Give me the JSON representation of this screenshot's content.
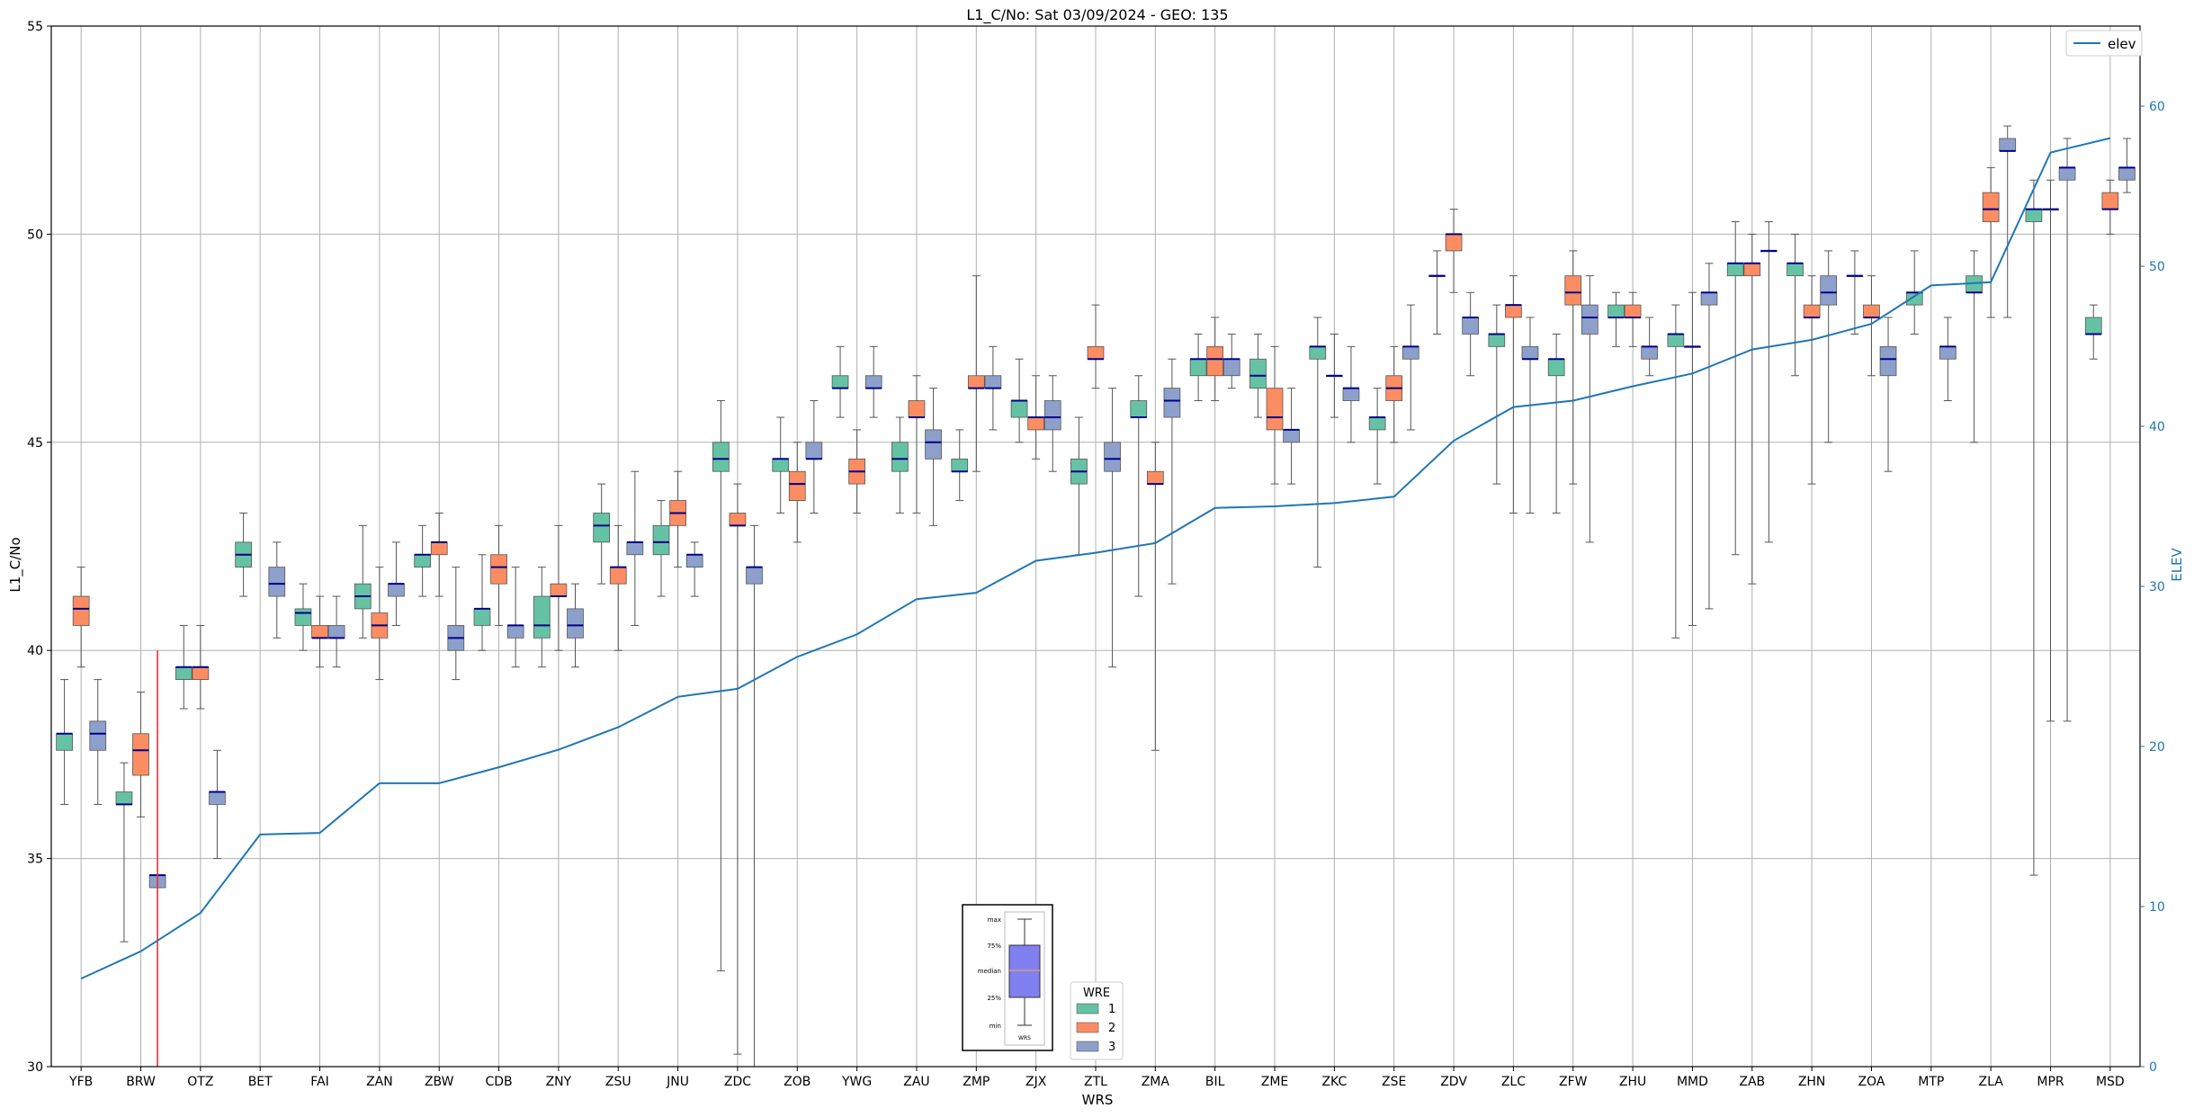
{
  "chart_data": {
    "type": "box",
    "title": "L1_C/No: Sat 03/09/2024 - GEO: 135",
    "xlabel": "WRS",
    "ylabel": "L1_C/No",
    "ylabel_right": "ELEV",
    "ylim": [
      30,
      55
    ],
    "ylim_right": [
      0,
      65
    ],
    "yticks": [
      30,
      35,
      40,
      45,
      50,
      55
    ],
    "yticks_right": [
      0,
      10,
      20,
      30,
      40,
      50,
      60
    ],
    "grid": true,
    "colors": {
      "1": "#66c2a5",
      "2": "#fc8d62",
      "3": "#8da0cb",
      "median": "#00008b",
      "elev": "#1f77b4",
      "marker": "#e8303a"
    },
    "legend_line": {
      "label": "elev",
      "placement": "top-right"
    },
    "legend_wre": {
      "title": "WRE",
      "entries": [
        "1",
        "2",
        "3"
      ],
      "placement": "bottom-center"
    },
    "inset_key": {
      "labels": [
        "max",
        "75%",
        "median",
        "25%",
        "min"
      ],
      "xlabel": "WRS"
    },
    "categories": [
      "YFB",
      "BRW",
      "OTZ",
      "BET",
      "FAI",
      "ZAN",
      "ZBW",
      "CDB",
      "ZNY",
      "ZSU",
      "JNU",
      "ZDC",
      "ZOB",
      "YWG",
      "ZAU",
      "ZMP",
      "ZJX",
      "ZTL",
      "ZMA",
      "BIL",
      "ZME",
      "ZKC",
      "ZSE",
      "ZDV",
      "ZLC",
      "ZFW",
      "ZHU",
      "MMD",
      "ZAB",
      "ZHN",
      "ZOA",
      "MTP",
      "ZLA",
      "MPR",
      "MSD"
    ],
    "elev": [
      5.5,
      7.2,
      9.6,
      14.5,
      14.6,
      17.7,
      17.7,
      18.7,
      19.8,
      21.2,
      23.1,
      23.6,
      25.6,
      27.0,
      29.2,
      29.6,
      31.6,
      32.1,
      32.7,
      34.9,
      35.0,
      35.2,
      35.6,
      39.1,
      41.2,
      41.6,
      42.5,
      43.3,
      44.8,
      45.4,
      46.4,
      48.8,
      49.0,
      57.1,
      58.0
    ],
    "marker_line": {
      "category": "BRW",
      "offset": 0.28,
      "y_from": 30,
      "y_to": 40
    },
    "boxes": [
      {
        "cat": "YFB",
        "wre": 1,
        "min": 36.3,
        "q1": 37.6,
        "med": 38.0,
        "q3": 38.0,
        "max": 39.3
      },
      {
        "cat": "YFB",
        "wre": 2,
        "min": 39.6,
        "q1": 40.6,
        "med": 41.0,
        "q3": 41.3,
        "max": 42.0
      },
      {
        "cat": "YFB",
        "wre": 3,
        "min": 36.3,
        "q1": 37.6,
        "med": 38.0,
        "q3": 38.3,
        "max": 39.3
      },
      {
        "cat": "BRW",
        "wre": 1,
        "min": 33.0,
        "q1": 36.3,
        "med": 36.3,
        "q3": 36.6,
        "max": 37.3
      },
      {
        "cat": "BRW",
        "wre": 2,
        "min": 36.0,
        "q1": 37.0,
        "med": 37.6,
        "q3": 38.0,
        "max": 39.0
      },
      {
        "cat": "BRW",
        "wre": 3,
        "min": 34.3,
        "q1": 34.3,
        "med": 34.6,
        "q3": 34.6,
        "max": 34.6
      },
      {
        "cat": "OTZ",
        "wre": 1,
        "min": 38.6,
        "q1": 39.3,
        "med": 39.6,
        "q3": 39.6,
        "max": 40.6
      },
      {
        "cat": "OTZ",
        "wre": 2,
        "min": 38.6,
        "q1": 39.3,
        "med": 39.6,
        "q3": 39.6,
        "max": 40.6
      },
      {
        "cat": "OTZ",
        "wre": 3,
        "min": 35.0,
        "q1": 36.3,
        "med": 36.6,
        "q3": 36.6,
        "max": 37.6
      },
      {
        "cat": "BET",
        "wre": 1,
        "min": 41.3,
        "q1": 42.0,
        "med": 42.3,
        "q3": 42.6,
        "max": 43.3
      },
      {
        "cat": "BET",
        "wre": 3,
        "min": 40.3,
        "q1": 41.3,
        "med": 41.6,
        "q3": 42.0,
        "max": 42.6
      },
      {
        "cat": "FAI",
        "wre": 1,
        "min": 40.0,
        "q1": 40.6,
        "med": 40.9,
        "q3": 41.0,
        "max": 41.6
      },
      {
        "cat": "FAI",
        "wre": 2,
        "min": 39.6,
        "q1": 40.3,
        "med": 40.3,
        "q3": 40.6,
        "max": 41.3
      },
      {
        "cat": "FAI",
        "wre": 3,
        "min": 39.6,
        "q1": 40.3,
        "med": 40.3,
        "q3": 40.6,
        "max": 41.3
      },
      {
        "cat": "ZAN",
        "wre": 1,
        "min": 40.3,
        "q1": 41.0,
        "med": 41.3,
        "q3": 41.6,
        "max": 43.0
      },
      {
        "cat": "ZAN",
        "wre": 2,
        "min": 39.3,
        "q1": 40.3,
        "med": 40.6,
        "q3": 40.9,
        "max": 42.0
      },
      {
        "cat": "ZAN",
        "wre": 3,
        "min": 40.6,
        "q1": 41.3,
        "med": 41.6,
        "q3": 41.6,
        "max": 42.6
      },
      {
        "cat": "ZBW",
        "wre": 1,
        "min": 41.3,
        "q1": 42.0,
        "med": 42.3,
        "q3": 42.3,
        "max": 43.0
      },
      {
        "cat": "ZBW",
        "wre": 2,
        "min": 41.3,
        "q1": 42.3,
        "med": 42.6,
        "q3": 42.6,
        "max": 43.3
      },
      {
        "cat": "ZBW",
        "wre": 3,
        "min": 39.3,
        "q1": 40.0,
        "med": 40.3,
        "q3": 40.6,
        "max": 42.0
      },
      {
        "cat": "CDB",
        "wre": 1,
        "min": 40.0,
        "q1": 40.6,
        "med": 41.0,
        "q3": 41.0,
        "max": 42.3
      },
      {
        "cat": "CDB",
        "wre": 2,
        "min": 40.6,
        "q1": 41.6,
        "med": 42.0,
        "q3": 42.3,
        "max": 43.0
      },
      {
        "cat": "CDB",
        "wre": 3,
        "min": 39.6,
        "q1": 40.3,
        "med": 40.6,
        "q3": 40.6,
        "max": 42.0
      },
      {
        "cat": "ZNY",
        "wre": 1,
        "min": 39.6,
        "q1": 40.3,
        "med": 40.6,
        "q3": 41.3,
        "max": 42.0
      },
      {
        "cat": "ZNY",
        "wre": 2,
        "min": 40.0,
        "q1": 41.3,
        "med": 41.3,
        "q3": 41.6,
        "max": 43.0
      },
      {
        "cat": "ZNY",
        "wre": 3,
        "min": 39.6,
        "q1": 40.3,
        "med": 40.6,
        "q3": 41.0,
        "max": 41.6
      },
      {
        "cat": "ZSU",
        "wre": 1,
        "min": 41.6,
        "q1": 42.6,
        "med": 43.0,
        "q3": 43.3,
        "max": 44.0
      },
      {
        "cat": "ZSU",
        "wre": 2,
        "min": 40.0,
        "q1": 41.6,
        "med": 42.0,
        "q3": 42.0,
        "max": 43.0
      },
      {
        "cat": "ZSU",
        "wre": 3,
        "min": 40.6,
        "q1": 42.3,
        "med": 42.6,
        "q3": 42.6,
        "max": 44.3
      },
      {
        "cat": "JNU",
        "wre": 1,
        "min": 41.3,
        "q1": 42.3,
        "med": 42.6,
        "q3": 43.0,
        "max": 43.6
      },
      {
        "cat": "JNU",
        "wre": 2,
        "min": 42.0,
        "q1": 43.0,
        "med": 43.3,
        "q3": 43.6,
        "max": 44.3
      },
      {
        "cat": "JNU",
        "wre": 3,
        "min": 41.3,
        "q1": 42.0,
        "med": 42.3,
        "q3": 42.3,
        "max": 42.6
      },
      {
        "cat": "ZDC",
        "wre": 1,
        "min": 32.3,
        "q1": 44.3,
        "med": 44.6,
        "q3": 45.0,
        "max": 46.0
      },
      {
        "cat": "ZDC",
        "wre": 2,
        "min": 30.3,
        "q1": 43.0,
        "med": 43.0,
        "q3": 43.3,
        "max": 44.0
      },
      {
        "cat": "ZDC",
        "wre": 3,
        "min": 30.0,
        "q1": 41.6,
        "med": 42.0,
        "q3": 42.0,
        "max": 43.0
      },
      {
        "cat": "ZOB",
        "wre": 1,
        "min": 43.3,
        "q1": 44.3,
        "med": 44.6,
        "q3": 44.6,
        "max": 45.6
      },
      {
        "cat": "ZOB",
        "wre": 2,
        "min": 42.6,
        "q1": 43.6,
        "med": 44.0,
        "q3": 44.3,
        "max": 45.0
      },
      {
        "cat": "ZOB",
        "wre": 3,
        "min": 43.3,
        "q1": 44.6,
        "med": 44.6,
        "q3": 45.0,
        "max": 46.0
      },
      {
        "cat": "YWG",
        "wre": 1,
        "min": 45.6,
        "q1": 46.3,
        "med": 46.3,
        "q3": 46.6,
        "max": 47.3
      },
      {
        "cat": "YWG",
        "wre": 2,
        "min": 43.3,
        "q1": 44.0,
        "med": 44.3,
        "q3": 44.6,
        "max": 45.3
      },
      {
        "cat": "YWG",
        "wre": 3,
        "min": 45.6,
        "q1": 46.3,
        "med": 46.3,
        "q3": 46.6,
        "max": 47.3
      },
      {
        "cat": "ZAU",
        "wre": 1,
        "min": 43.3,
        "q1": 44.3,
        "med": 44.6,
        "q3": 45.0,
        "max": 45.6
      },
      {
        "cat": "ZAU",
        "wre": 2,
        "min": 43.3,
        "q1": 45.6,
        "med": 45.6,
        "q3": 46.0,
        "max": 46.6
      },
      {
        "cat": "ZAU",
        "wre": 3,
        "min": 43.0,
        "q1": 44.6,
        "med": 45.0,
        "q3": 45.3,
        "max": 46.3
      },
      {
        "cat": "ZMP",
        "wre": 1,
        "min": 43.6,
        "q1": 44.3,
        "med": 44.3,
        "q3": 44.6,
        "max": 45.3
      },
      {
        "cat": "ZMP",
        "wre": 2,
        "min": 44.3,
        "q1": 46.3,
        "med": 46.3,
        "q3": 46.6,
        "max": 49.0
      },
      {
        "cat": "ZMP",
        "wre": 3,
        "min": 45.3,
        "q1": 46.3,
        "med": 46.3,
        "q3": 46.6,
        "max": 47.3
      },
      {
        "cat": "ZJX",
        "wre": 1,
        "min": 45.0,
        "q1": 45.6,
        "med": 46.0,
        "q3": 46.0,
        "max": 47.0
      },
      {
        "cat": "ZJX",
        "wre": 2,
        "min": 44.6,
        "q1": 45.3,
        "med": 45.6,
        "q3": 45.6,
        "max": 46.6
      },
      {
        "cat": "ZJX",
        "wre": 3,
        "min": 44.3,
        "q1": 45.3,
        "med": 45.6,
        "q3": 46.0,
        "max": 46.6
      },
      {
        "cat": "ZTL",
        "wre": 1,
        "min": 42.3,
        "q1": 44.0,
        "med": 44.3,
        "q3": 44.6,
        "max": 45.6
      },
      {
        "cat": "ZTL",
        "wre": 2,
        "min": 46.3,
        "q1": 47.0,
        "med": 47.0,
        "q3": 47.3,
        "max": 48.3
      },
      {
        "cat": "ZTL",
        "wre": 3,
        "min": 39.6,
        "q1": 44.3,
        "med": 44.6,
        "q3": 45.0,
        "max": 46.3
      },
      {
        "cat": "ZMA",
        "wre": 1,
        "min": 41.3,
        "q1": 45.6,
        "med": 45.6,
        "q3": 46.0,
        "max": 46.6
      },
      {
        "cat": "ZMA",
        "wre": 2,
        "min": 37.6,
        "q1": 44.0,
        "med": 44.0,
        "q3": 44.3,
        "max": 45.0
      },
      {
        "cat": "ZMA",
        "wre": 3,
        "min": 41.6,
        "q1": 45.6,
        "med": 46.0,
        "q3": 46.3,
        "max": 47.0
      },
      {
        "cat": "BIL",
        "wre": 1,
        "min": 46.0,
        "q1": 46.6,
        "med": 47.0,
        "q3": 47.0,
        "max": 47.6
      },
      {
        "cat": "BIL",
        "wre": 2,
        "min": 46.0,
        "q1": 46.6,
        "med": 47.0,
        "q3": 47.3,
        "max": 48.0
      },
      {
        "cat": "BIL",
        "wre": 3,
        "min": 46.3,
        "q1": 46.6,
        "med": 47.0,
        "q3": 47.0,
        "max": 47.6
      },
      {
        "cat": "ZME",
        "wre": 1,
        "min": 45.6,
        "q1": 46.3,
        "med": 46.6,
        "q3": 47.0,
        "max": 47.6
      },
      {
        "cat": "ZME",
        "wre": 2,
        "min": 44.0,
        "q1": 45.3,
        "med": 45.6,
        "q3": 46.3,
        "max": 47.3
      },
      {
        "cat": "ZME",
        "wre": 3,
        "min": 44.0,
        "q1": 45.0,
        "med": 45.3,
        "q3": 45.3,
        "max": 46.3
      },
      {
        "cat": "ZKC",
        "wre": 1,
        "min": 42.0,
        "q1": 47.0,
        "med": 47.3,
        "q3": 47.3,
        "max": 48.0
      },
      {
        "cat": "ZKC",
        "wre": 2,
        "min": 45.6,
        "q1": 46.6,
        "med": 46.6,
        "q3": 46.6,
        "max": 47.6
      },
      {
        "cat": "ZKC",
        "wre": 3,
        "min": 45.0,
        "q1": 46.0,
        "med": 46.3,
        "q3": 46.3,
        "max": 47.3
      },
      {
        "cat": "ZSE",
        "wre": 1,
        "min": 44.0,
        "q1": 45.3,
        "med": 45.6,
        "q3": 45.6,
        "max": 46.3
      },
      {
        "cat": "ZSE",
        "wre": 2,
        "min": 45.0,
        "q1": 46.0,
        "med": 46.3,
        "q3": 46.6,
        "max": 47.3
      },
      {
        "cat": "ZSE",
        "wre": 3,
        "min": 45.3,
        "q1": 47.0,
        "med": 47.3,
        "q3": 47.3,
        "max": 48.3
      },
      {
        "cat": "ZDV",
        "wre": 1,
        "min": 47.6,
        "q1": 49.0,
        "med": 49.0,
        "q3": 49.0,
        "max": 49.6
      },
      {
        "cat": "ZDV",
        "wre": 2,
        "min": 48.6,
        "q1": 49.6,
        "med": 50.0,
        "q3": 50.0,
        "max": 50.6
      },
      {
        "cat": "ZDV",
        "wre": 3,
        "min": 46.6,
        "q1": 47.6,
        "med": 48.0,
        "q3": 48.0,
        "max": 48.6
      },
      {
        "cat": "ZLC",
        "wre": 1,
        "min": 44.0,
        "q1": 47.3,
        "med": 47.6,
        "q3": 47.6,
        "max": 48.3
      },
      {
        "cat": "ZLC",
        "wre": 2,
        "min": 43.3,
        "q1": 48.0,
        "med": 48.3,
        "q3": 48.3,
        "max": 49.0
      },
      {
        "cat": "ZLC",
        "wre": 3,
        "min": 43.3,
        "q1": 47.0,
        "med": 47.0,
        "q3": 47.3,
        "max": 48.0
      },
      {
        "cat": "ZFW",
        "wre": 1,
        "min": 43.3,
        "q1": 46.6,
        "med": 47.0,
        "q3": 47.0,
        "max": 47.6
      },
      {
        "cat": "ZFW",
        "wre": 2,
        "min": 44.0,
        "q1": 48.3,
        "med": 48.6,
        "q3": 49.0,
        "max": 49.6
      },
      {
        "cat": "ZFW",
        "wre": 3,
        "min": 42.6,
        "q1": 47.6,
        "med": 48.0,
        "q3": 48.3,
        "max": 49.0
      },
      {
        "cat": "ZHU",
        "wre": 1,
        "min": 47.3,
        "q1": 48.0,
        "med": 48.0,
        "q3": 48.3,
        "max": 48.6
      },
      {
        "cat": "ZHU",
        "wre": 2,
        "min": 47.3,
        "q1": 48.0,
        "med": 48.0,
        "q3": 48.3,
        "max": 48.6
      },
      {
        "cat": "ZHU",
        "wre": 3,
        "min": 46.6,
        "q1": 47.0,
        "med": 47.3,
        "q3": 47.3,
        "max": 48.0
      },
      {
        "cat": "MMD",
        "wre": 1,
        "min": 40.3,
        "q1": 47.3,
        "med": 47.6,
        "q3": 47.6,
        "max": 48.3
      },
      {
        "cat": "MMD",
        "wre": 2,
        "min": 40.6,
        "q1": 47.3,
        "med": 47.3,
        "q3": 47.3,
        "max": 48.6
      },
      {
        "cat": "MMD",
        "wre": 3,
        "min": 41.0,
        "q1": 48.3,
        "med": 48.6,
        "q3": 48.6,
        "max": 49.3
      },
      {
        "cat": "ZAB",
        "wre": 1,
        "min": 42.3,
        "q1": 49.0,
        "med": 49.3,
        "q3": 49.3,
        "max": 50.3
      },
      {
        "cat": "ZAB",
        "wre": 2,
        "min": 41.6,
        "q1": 49.0,
        "med": 49.3,
        "q3": 49.3,
        "max": 50.0
      },
      {
        "cat": "ZAB",
        "wre": 3,
        "min": 42.6,
        "q1": 49.6,
        "med": 49.6,
        "q3": 49.6,
        "max": 50.3
      },
      {
        "cat": "ZHN",
        "wre": 1,
        "min": 46.6,
        "q1": 49.0,
        "med": 49.3,
        "q3": 49.3,
        "max": 50.0
      },
      {
        "cat": "ZHN",
        "wre": 2,
        "min": 44.0,
        "q1": 48.0,
        "med": 48.0,
        "q3": 48.3,
        "max": 49.0
      },
      {
        "cat": "ZHN",
        "wre": 3,
        "min": 45.0,
        "q1": 48.3,
        "med": 48.6,
        "q3": 49.0,
        "max": 49.6
      },
      {
        "cat": "ZOA",
        "wre": 1,
        "min": 47.6,
        "q1": 49.0,
        "med": 49.0,
        "q3": 49.0,
        "max": 49.6
      },
      {
        "cat": "ZOA",
        "wre": 2,
        "min": 46.6,
        "q1": 48.0,
        "med": 48.0,
        "q3": 48.3,
        "max": 49.0
      },
      {
        "cat": "ZOA",
        "wre": 3,
        "min": 44.3,
        "q1": 46.6,
        "med": 47.0,
        "q3": 47.3,
        "max": 48.0
      },
      {
        "cat": "MTP",
        "wre": 1,
        "min": 47.6,
        "q1": 48.3,
        "med": 48.6,
        "q3": 48.6,
        "max": 49.6
      },
      {
        "cat": "MTP",
        "wre": 3,
        "min": 46.0,
        "q1": 47.0,
        "med": 47.3,
        "q3": 47.3,
        "max": 48.0
      },
      {
        "cat": "ZLA",
        "wre": 1,
        "min": 45.0,
        "q1": 48.6,
        "med": 48.6,
        "q3": 49.0,
        "max": 49.6
      },
      {
        "cat": "ZLA",
        "wre": 2,
        "min": 48.0,
        "q1": 50.3,
        "med": 50.6,
        "q3": 51.0,
        "max": 51.6
      },
      {
        "cat": "ZLA",
        "wre": 3,
        "min": 48.0,
        "q1": 52.0,
        "med": 52.0,
        "q3": 52.3,
        "max": 52.6
      },
      {
        "cat": "MPR",
        "wre": 1,
        "min": 34.6,
        "q1": 50.3,
        "med": 50.6,
        "q3": 50.6,
        "max": 51.3
      },
      {
        "cat": "MPR",
        "wre": 2,
        "min": 38.3,
        "q1": 50.6,
        "med": 50.6,
        "q3": 50.6,
        "max": 51.3
      },
      {
        "cat": "MPR",
        "wre": 3,
        "min": 38.3,
        "q1": 51.3,
        "med": 51.6,
        "q3": 51.6,
        "max": 52.3
      },
      {
        "cat": "MSD",
        "wre": 1,
        "min": 47.0,
        "q1": 47.6,
        "med": 47.6,
        "q3": 48.0,
        "max": 48.3
      },
      {
        "cat": "MSD",
        "wre": 2,
        "min": 50.0,
        "q1": 50.6,
        "med": 50.6,
        "q3": 51.0,
        "max": 51.3
      },
      {
        "cat": "MSD",
        "wre": 3,
        "min": 51.0,
        "q1": 51.3,
        "med": 51.6,
        "q3": 51.6,
        "max": 52.3
      }
    ]
  }
}
